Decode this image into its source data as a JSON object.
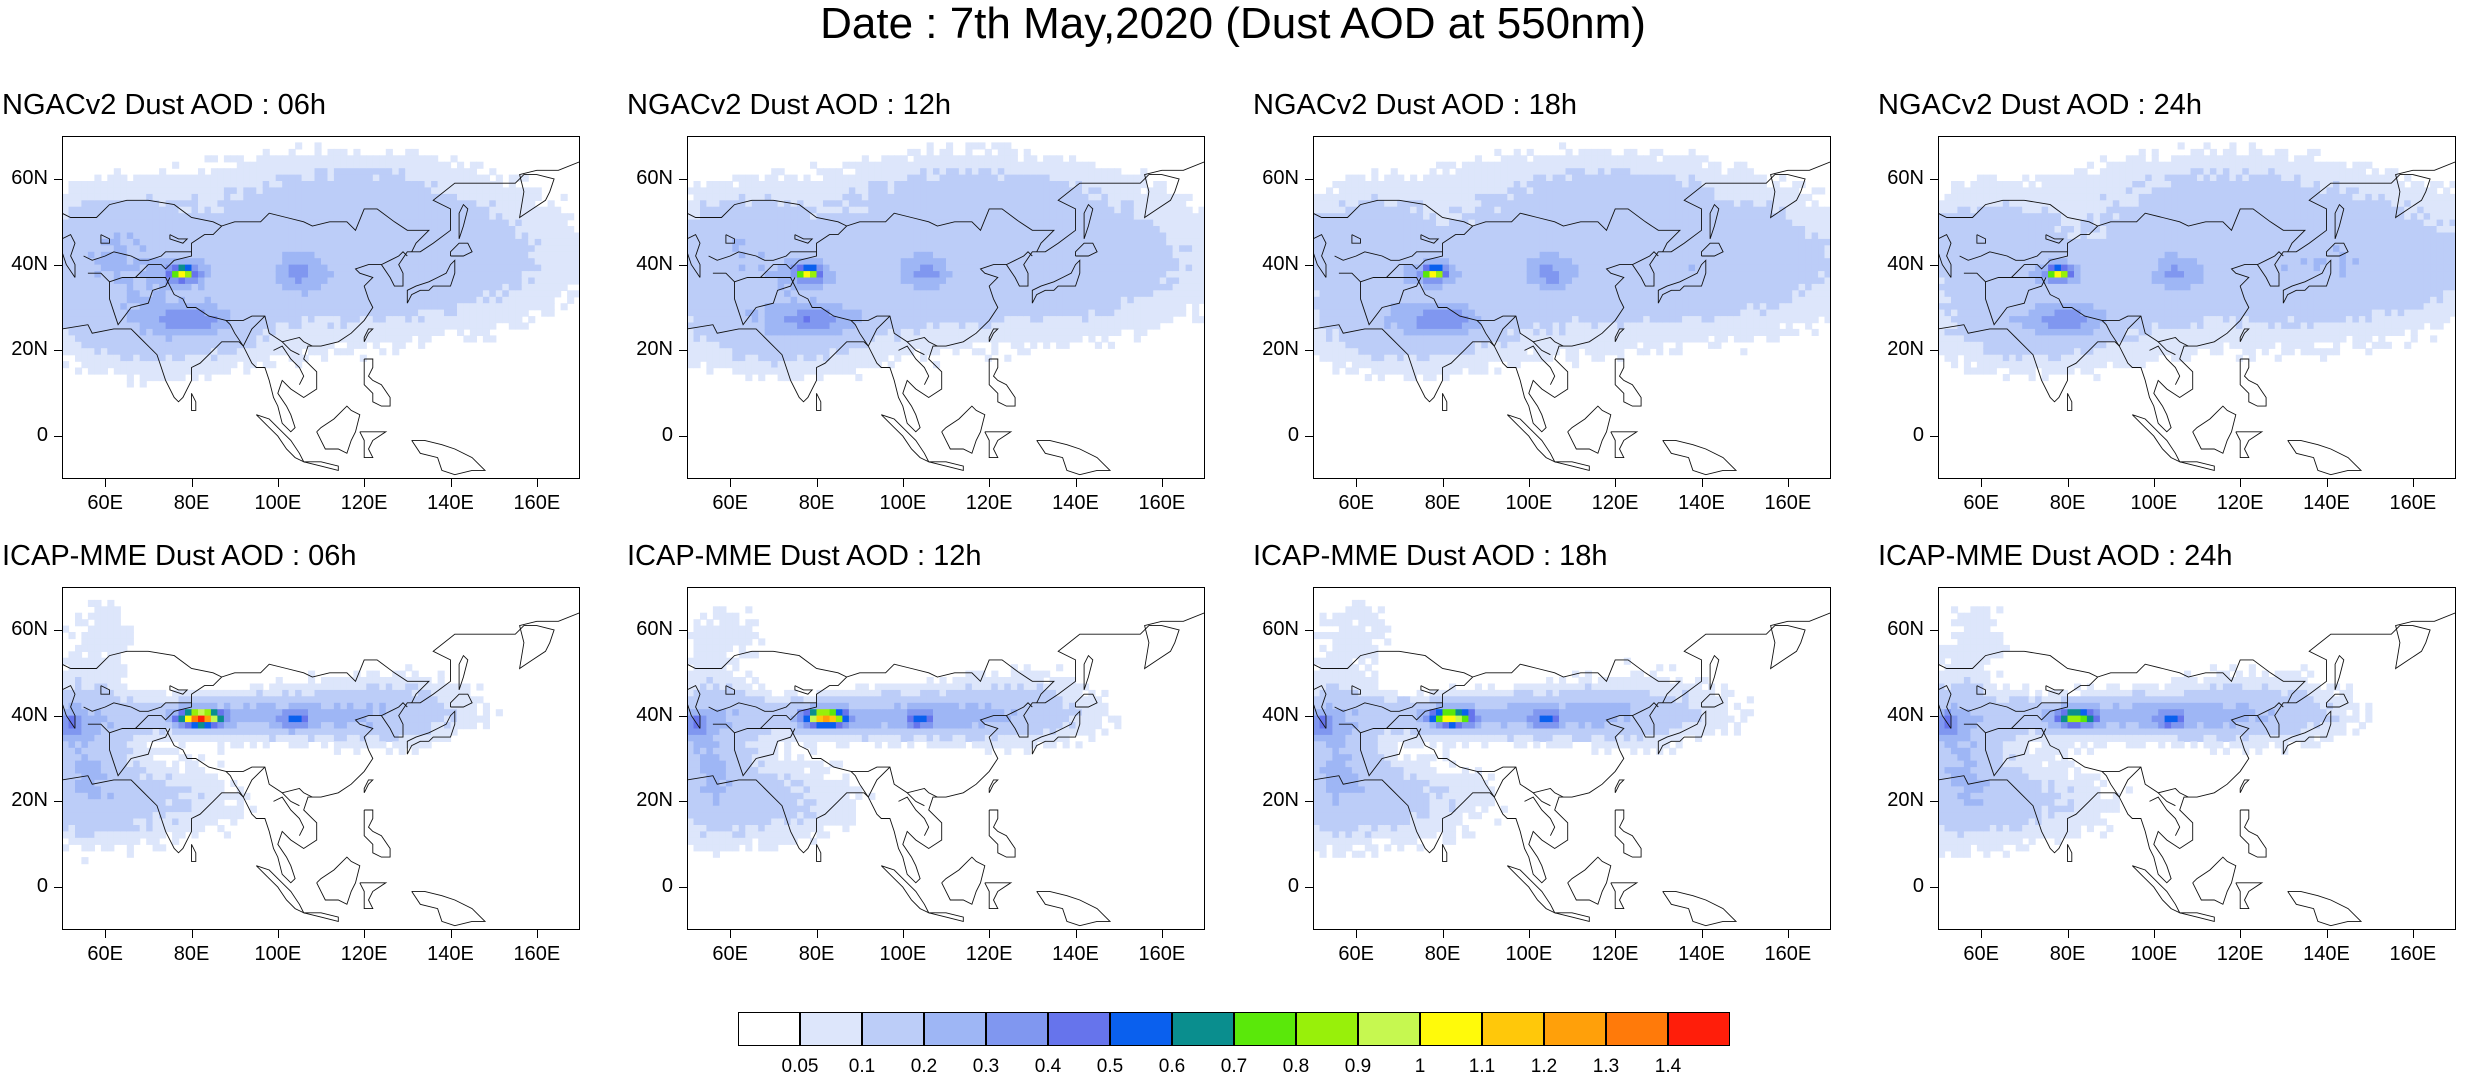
{
  "title": "Date : 7th May,2020 (Dust AOD at 550nm)",
  "x_tick_labels": [
    "60E",
    "80E",
    "100E",
    "120E",
    "140E",
    "160E"
  ],
  "y_tick_labels": [
    "60N",
    "40N",
    "20N",
    "0"
  ],
  "panels": [
    {
      "title": "NGACv2 Dust AOD : 06h"
    },
    {
      "title": "NGACv2 Dust AOD : 12h"
    },
    {
      "title": "NGACv2 Dust AOD : 18h"
    },
    {
      "title": "NGACv2 Dust AOD : 24h"
    },
    {
      "title": "ICAP-MME Dust AOD : 06h"
    },
    {
      "title": "ICAP-MME Dust AOD : 12h"
    },
    {
      "title": "ICAP-MME Dust AOD : 18h"
    },
    {
      "title": "ICAP-MME Dust AOD : 24h"
    }
  ],
  "colorbar": {
    "labels": [
      "0.05",
      "0.1",
      "0.2",
      "0.3",
      "0.4",
      "0.5",
      "0.6",
      "0.7",
      "0.8",
      "0.9",
      "1",
      "1.1",
      "1.2",
      "1.3",
      "1.4"
    ],
    "colors": [
      "#ffffff",
      "#dde6fb",
      "#bccdf8",
      "#9eb6f5",
      "#8097f0",
      "#6674ec",
      "#0a60ee",
      "#0a8e8e",
      "#5ae80a",
      "#98f00a",
      "#c6f850",
      "#fffa0a",
      "#ffc80a",
      "#ffa00a",
      "#ff7a0a",
      "#ff1e0a"
    ]
  }
}
